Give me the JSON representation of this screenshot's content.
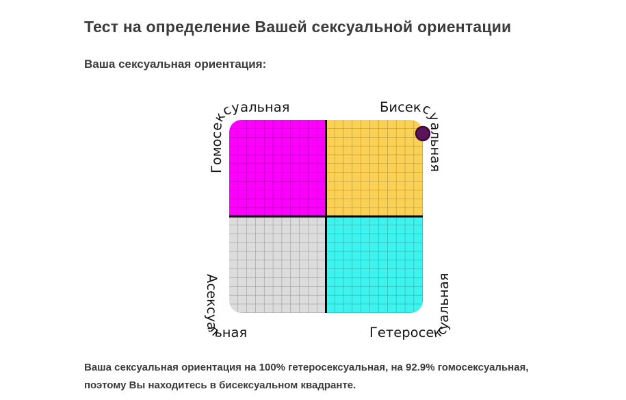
{
  "page": {
    "title": "Тест на определение Вашей сексуальной ориентации",
    "subtitle": "Ваша сексуальная ориентация:",
    "result_line1": "Ваша сексуальная ориентация на 100% гетеросексуальная, на 92.9% гомосексуальная,",
    "result_line2": "поэтому Вы находитесь в бисексуальном квадранте."
  },
  "chart_data": {
    "type": "scatter",
    "title": "Ваша сексуальная ориентация:",
    "quadrants": [
      {
        "position": "top-left",
        "label": "Гомосексуальная",
        "color": "#fb00fb"
      },
      {
        "position": "top-right",
        "label": "Бисексуальная",
        "color": "#fbd155"
      },
      {
        "position": "bottom-left",
        "label": "Асексуальная",
        "color": "#dcdcdc"
      },
      {
        "position": "bottom-right",
        "label": "Гетеросексуальная",
        "color": "#3ef3ee"
      }
    ],
    "x_axis": {
      "label": "гетеросексуальная",
      "range_pct": [
        0,
        100
      ]
    },
    "y_axis": {
      "label": "гомосексуальная",
      "range_pct": [
        0,
        100
      ]
    },
    "grid": {
      "on": true,
      "cells_per_quadrant": 11,
      "line_color": "rgba(0,0,0,0.35)"
    },
    "point": {
      "heterosexual_pct": 100,
      "homosexual_pct": 92.9,
      "color": "#5b1457",
      "outline": "#3c0a3a"
    },
    "result_quadrant": "бисексуальный"
  }
}
